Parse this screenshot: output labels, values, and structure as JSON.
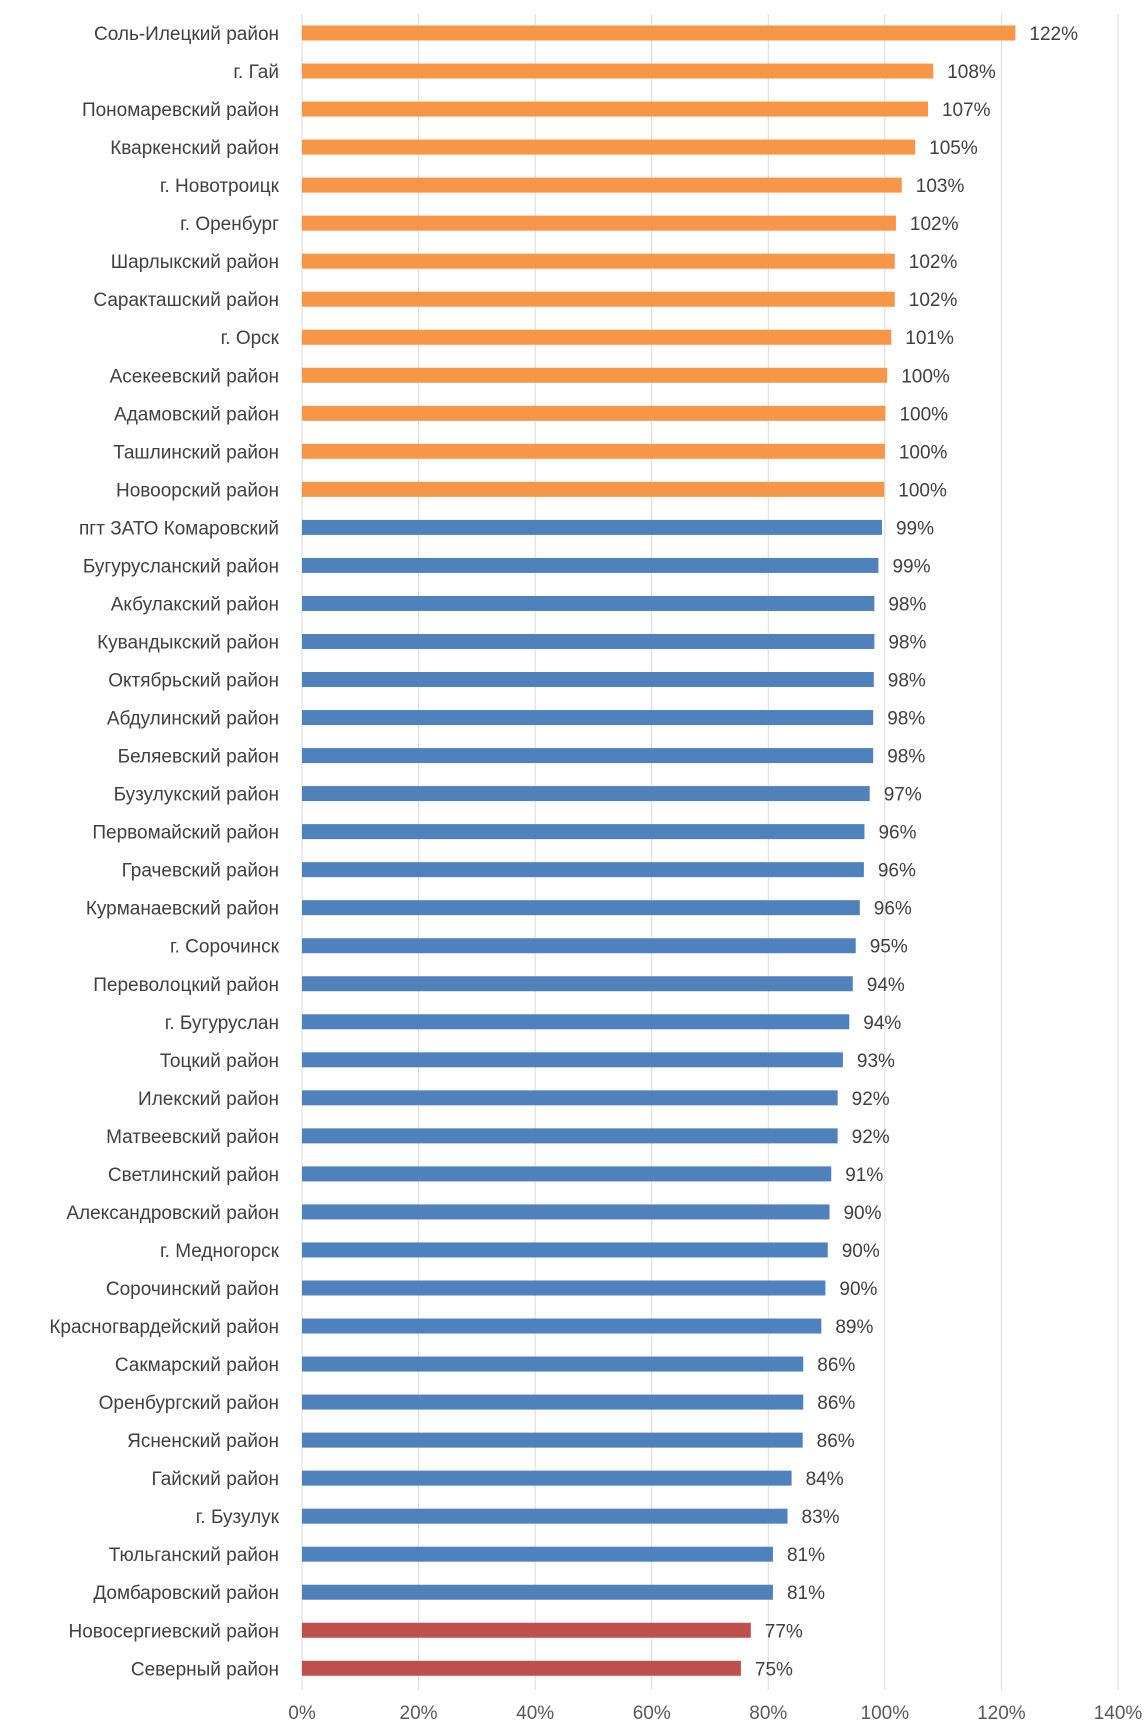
{
  "chart_data": {
    "type": "bar",
    "orientation": "horizontal",
    "title": "",
    "xlabel": "",
    "ylabel": "",
    "xlim": [
      0,
      140
    ],
    "grid": true,
    "legend": "none",
    "value_suffix": "%",
    "ticks": [
      "0%",
      "20%",
      "40%",
      "60%",
      "80%",
      "100%",
      "120%",
      "140%"
    ],
    "colors": {
      "above": "#F79646",
      "normal": "#4F81BD",
      "below": "#C0504D"
    },
    "categories": [
      "Соль-Илецкий район",
      "г. Гай",
      "Пономаревский район",
      "Кваркенский район",
      "г. Новотроицк",
      "г. Оренбург",
      "Шарлыкский район",
      "Саракташский район",
      "г. Орск",
      "Асекеевский район",
      "Адамовский район",
      "Ташлинский район",
      "Новоорский район",
      "пгт ЗАТО Комаровский",
      "Бугурусланский район",
      "Акбулакский район",
      "Кувандыкский район",
      "Октябрьский район",
      "Абдулинский район",
      "Беляевский район",
      "Бузулукский район",
      "Первомайский район",
      "Грачевский район",
      "Курманаевский район",
      "г. Сорочинск",
      "Переволоцкий район",
      "г. Бугуруслан",
      "Тоцкий район",
      "Илекский район",
      "Матвеевский район",
      "Светлинский район",
      "Александровский район",
      "г. Медногорск",
      "Сорочинский район",
      "Красногвардейский район",
      "Сакмарский район",
      "Оренбургский район",
      "Ясненский район",
      "Гайский район",
      "г. Бузулук",
      "Тюльганский район",
      "Домбаровский район",
      "Новосергиевский район",
      "Северный район"
    ],
    "values": [
      122.4,
      108.3,
      107.4,
      105.2,
      102.9,
      101.9,
      101.7,
      101.7,
      101.1,
      100.4,
      100.1,
      100.0,
      99.9,
      99.5,
      98.9,
      98.2,
      98.2,
      98.1,
      98.0,
      98.0,
      97.4,
      96.5,
      96.4,
      95.7,
      95.0,
      94.5,
      93.9,
      92.8,
      91.9,
      91.9,
      90.8,
      90.5,
      90.2,
      89.8,
      89.1,
      86.0,
      86.0,
      85.9,
      84.0,
      83.3,
      80.8,
      80.8,
      77.0,
      75.3
    ],
    "labels": [
      "122%",
      "108%",
      "107%",
      "105%",
      "103%",
      "102%",
      "102%",
      "102%",
      "101%",
      "100%",
      "100%",
      "100%",
      "100%",
      "99%",
      "99%",
      "98%",
      "98%",
      "98%",
      "98%",
      "98%",
      "97%",
      "96%",
      "96%",
      "96%",
      "95%",
      "94%",
      "94%",
      "93%",
      "92%",
      "92%",
      "91%",
      "90%",
      "90%",
      "90%",
      "89%",
      "86%",
      "86%",
      "86%",
      "84%",
      "83%",
      "81%",
      "81%",
      "77%",
      "75%"
    ],
    "groups": [
      "above",
      "above",
      "above",
      "above",
      "above",
      "above",
      "above",
      "above",
      "above",
      "above",
      "above",
      "above",
      "above",
      "normal",
      "normal",
      "normal",
      "normal",
      "normal",
      "normal",
      "normal",
      "normal",
      "normal",
      "normal",
      "normal",
      "normal",
      "normal",
      "normal",
      "normal",
      "normal",
      "normal",
      "normal",
      "normal",
      "normal",
      "normal",
      "normal",
      "normal",
      "normal",
      "normal",
      "normal",
      "normal",
      "normal",
      "normal",
      "below",
      "below"
    ]
  }
}
